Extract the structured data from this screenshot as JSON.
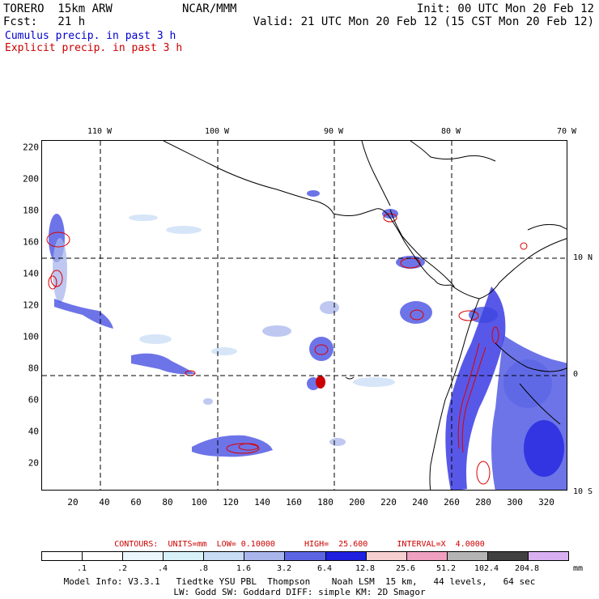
{
  "header": {
    "left_line1": "TORERO  15km ARW",
    "center_line1": "NCAR/MMM",
    "right_line1": "Init: 00 UTC Mon 20 Feb 12",
    "left_line2": "Fcst:   21 h",
    "right_line2": "Valid: 21 UTC Mon 20 Feb 12 (15 CST Mon 20 Feb 12)",
    "field1": "Cumulus precip. in past 3 h",
    "field2": "Explicit precip. in past 3 h"
  },
  "colors": {
    "field1": "#0000cc",
    "field2": "#cc0000",
    "coast": "#000000",
    "explicit_contour": "#dd0000"
  },
  "map": {
    "lon_labels": [
      "110 W",
      "100 W",
      "90 W",
      "80 W",
      "70 W"
    ],
    "lat_labels": [
      "10 N",
      "0",
      "10 S"
    ],
    "x_ticks": [
      "20",
      "40",
      "60",
      "80",
      "100",
      "120",
      "140",
      "160",
      "180",
      "200",
      "220",
      "240",
      "260",
      "280",
      "300",
      "320"
    ],
    "y_ticks": [
      "220",
      "200",
      "180",
      "160",
      "140",
      "120",
      "100",
      "80",
      "60",
      "40",
      "20"
    ],
    "x_range": [
      0,
      334
    ],
    "y_range": [
      0,
      222
    ]
  },
  "contours": "CONTOURS:  UNITS=mm  LOW= 0.10000      HIGH=  25.600      INTERVAL=X  4.0000",
  "colorbar": {
    "labels": [
      ".1",
      ".2",
      ".4",
      ".8",
      "1.6",
      "3.2",
      "6.4",
      "12.8",
      "25.6",
      "51.2",
      "102.4",
      "204.8"
    ],
    "colors": [
      "#ffffff",
      "#ffffff",
      "#eaf6fc",
      "#d8f1f8",
      "#c8dcf4",
      "#a8b6ec",
      "#5c66e4",
      "#2020e0",
      "#f6d0d0",
      "#f0a0c0",
      "#b4b4b4",
      "#404040",
      "#d8b0f0"
    ],
    "unit": "mm"
  },
  "footer": {
    "line1": "Model Info: V3.3.1   Tiedtke YSU PBL  Thompson    Noah LSM  15 km,   44 levels,   64 sec",
    "line2": "LW: Godd SW: Goddard DIFF: simple KM: 2D Smagor"
  }
}
